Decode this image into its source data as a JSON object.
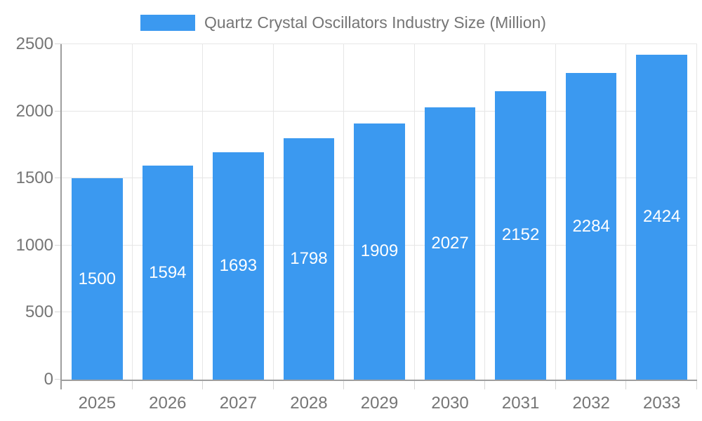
{
  "legend": {
    "label": "Quartz Crystal Oscillators Industry Size (Million)"
  },
  "chart_data": {
    "type": "bar",
    "title": "Quartz Crystal Oscillators Industry Size (Million)",
    "series_name": "Quartz Crystal Oscillators Industry Size (Million)",
    "categories": [
      "2025",
      "2026",
      "2027",
      "2028",
      "2029",
      "2030",
      "2031",
      "2032",
      "2033"
    ],
    "values": [
      1500,
      1594,
      1693,
      1798,
      1909,
      2027,
      2152,
      2284,
      2424
    ],
    "xlabel": "",
    "ylabel": "",
    "ylim": [
      0,
      2500
    ],
    "y_ticks": [
      0,
      500,
      1000,
      1500,
      2000,
      2500
    ],
    "grid": true,
    "legend_position": "top-center",
    "value_labels": "centered-inside-bars",
    "colors": {
      "bar": "#3b99f0",
      "value_label": "#ffffff",
      "axis_text": "#757575",
      "axis_line": "#9e9e9e",
      "gridline": "#e6e6e6",
      "background": "#ffffff"
    }
  }
}
